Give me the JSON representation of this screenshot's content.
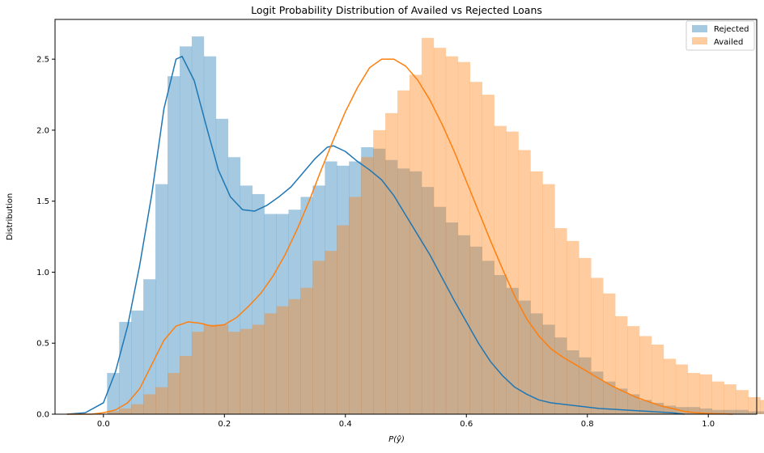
{
  "chart_data": {
    "type": "histogram",
    "title": "Logit Probability Distribution of Availed vs Rejected Loans",
    "xlabel": "P(ŷ)",
    "ylabel": "Distribution",
    "xlim": [
      -0.08,
      1.08
    ],
    "ylim": [
      0,
      2.78
    ],
    "xticks": [
      "0.0",
      "0.2",
      "0.4",
      "0.6",
      "0.8",
      "1.0"
    ],
    "xtick_values": [
      0.0,
      0.2,
      0.4,
      0.6,
      0.8,
      1.0
    ],
    "yticks": [
      "0.0",
      "0.5",
      "1.0",
      "1.5",
      "2.0",
      "2.5"
    ],
    "ytick_values": [
      0.0,
      0.5,
      1.0,
      1.5,
      2.0,
      2.5
    ],
    "grid": false,
    "legend_position": "top-right",
    "bin_start": 0.006,
    "bin_width": 0.02,
    "series": [
      {
        "name": "Rejected",
        "color": "#1f77b4",
        "bar_values": [
          0.29,
          0.65,
          0.73,
          0.95,
          1.62,
          2.38,
          2.59,
          2.66,
          2.52,
          2.08,
          1.81,
          1.61,
          1.55,
          1.41,
          1.41,
          1.44,
          1.53,
          1.61,
          1.78,
          1.75,
          1.78,
          1.88,
          1.87,
          1.79,
          1.73,
          1.71,
          1.6,
          1.46,
          1.35,
          1.26,
          1.18,
          1.08,
          0.98,
          0.89,
          0.8,
          0.71,
          0.63,
          0.54,
          0.45,
          0.4,
          0.3,
          0.23,
          0.18,
          0.14,
          0.1,
          0.08,
          0.06,
          0.05,
          0.05,
          0.04,
          0.03,
          0.03,
          0.03,
          0.02,
          0.02,
          0.02,
          0.01,
          0.01,
          0.01,
          0.01
        ],
        "kde": [
          [
            -0.06,
            0.0
          ],
          [
            -0.03,
            0.01
          ],
          [
            0.0,
            0.08
          ],
          [
            0.02,
            0.3
          ],
          [
            0.04,
            0.62
          ],
          [
            0.06,
            1.05
          ],
          [
            0.08,
            1.55
          ],
          [
            0.1,
            2.15
          ],
          [
            0.12,
            2.5
          ],
          [
            0.13,
            2.52
          ],
          [
            0.15,
            2.35
          ],
          [
            0.17,
            2.03
          ],
          [
            0.19,
            1.72
          ],
          [
            0.21,
            1.53
          ],
          [
            0.23,
            1.44
          ],
          [
            0.25,
            1.43
          ],
          [
            0.27,
            1.47
          ],
          [
            0.29,
            1.53
          ],
          [
            0.31,
            1.6
          ],
          [
            0.33,
            1.7
          ],
          [
            0.35,
            1.8
          ],
          [
            0.37,
            1.88
          ],
          [
            0.38,
            1.89
          ],
          [
            0.4,
            1.85
          ],
          [
            0.42,
            1.78
          ],
          [
            0.44,
            1.72
          ],
          [
            0.46,
            1.65
          ],
          [
            0.48,
            1.54
          ],
          [
            0.5,
            1.4
          ],
          [
            0.52,
            1.26
          ],
          [
            0.54,
            1.12
          ],
          [
            0.56,
            0.96
          ],
          [
            0.58,
            0.8
          ],
          [
            0.6,
            0.65
          ],
          [
            0.62,
            0.5
          ],
          [
            0.64,
            0.37
          ],
          [
            0.66,
            0.27
          ],
          [
            0.68,
            0.19
          ],
          [
            0.7,
            0.14
          ],
          [
            0.72,
            0.1
          ],
          [
            0.74,
            0.08
          ],
          [
            0.78,
            0.06
          ],
          [
            0.82,
            0.04
          ],
          [
            0.86,
            0.03
          ],
          [
            0.9,
            0.02
          ],
          [
            0.94,
            0.01
          ],
          [
            0.96,
            0.0
          ]
        ]
      },
      {
        "name": "Availed",
        "color": "#ff7f0e",
        "bar_values": [
          0.02,
          0.04,
          0.07,
          0.14,
          0.19,
          0.29,
          0.41,
          0.58,
          0.63,
          0.63,
          0.58,
          0.6,
          0.63,
          0.71,
          0.76,
          0.81,
          0.89,
          1.08,
          1.15,
          1.33,
          1.53,
          1.81,
          2.0,
          2.12,
          2.28,
          2.39,
          2.65,
          2.58,
          2.52,
          2.48,
          2.34,
          2.25,
          2.03,
          1.99,
          1.86,
          1.71,
          1.62,
          1.31,
          1.22,
          1.1,
          0.96,
          0.85,
          0.69,
          0.62,
          0.55,
          0.49,
          0.39,
          0.35,
          0.29,
          0.28,
          0.23,
          0.21,
          0.17,
          0.12,
          0.1,
          0.08,
          0.05,
          0.03,
          0.02,
          0.01
        ],
        "kde": [
          [
            -0.06,
            0.0
          ],
          [
            -0.02,
            0.0
          ],
          [
            0.0,
            0.01
          ],
          [
            0.02,
            0.03
          ],
          [
            0.04,
            0.08
          ],
          [
            0.06,
            0.18
          ],
          [
            0.08,
            0.35
          ],
          [
            0.1,
            0.52
          ],
          [
            0.12,
            0.62
          ],
          [
            0.14,
            0.65
          ],
          [
            0.16,
            0.64
          ],
          [
            0.18,
            0.62
          ],
          [
            0.2,
            0.63
          ],
          [
            0.22,
            0.68
          ],
          [
            0.24,
            0.76
          ],
          [
            0.26,
            0.85
          ],
          [
            0.28,
            0.97
          ],
          [
            0.3,
            1.12
          ],
          [
            0.32,
            1.3
          ],
          [
            0.34,
            1.5
          ],
          [
            0.36,
            1.72
          ],
          [
            0.38,
            1.93
          ],
          [
            0.4,
            2.13
          ],
          [
            0.42,
            2.3
          ],
          [
            0.44,
            2.44
          ],
          [
            0.46,
            2.5
          ],
          [
            0.48,
            2.5
          ],
          [
            0.5,
            2.45
          ],
          [
            0.52,
            2.35
          ],
          [
            0.54,
            2.21
          ],
          [
            0.56,
            2.04
          ],
          [
            0.58,
            1.85
          ],
          [
            0.6,
            1.64
          ],
          [
            0.62,
            1.43
          ],
          [
            0.64,
            1.22
          ],
          [
            0.66,
            1.02
          ],
          [
            0.68,
            0.83
          ],
          [
            0.7,
            0.67
          ],
          [
            0.72,
            0.55
          ],
          [
            0.74,
            0.46
          ],
          [
            0.76,
            0.4
          ],
          [
            0.78,
            0.35
          ],
          [
            0.8,
            0.3
          ],
          [
            0.82,
            0.25
          ],
          [
            0.84,
            0.2
          ],
          [
            0.86,
            0.16
          ],
          [
            0.88,
            0.12
          ],
          [
            0.9,
            0.09
          ],
          [
            0.92,
            0.06
          ],
          [
            0.94,
            0.04
          ],
          [
            0.96,
            0.02
          ],
          [
            0.98,
            0.01
          ],
          [
            1.0,
            0.005
          ],
          [
            1.04,
            0.0
          ]
        ]
      }
    ]
  }
}
